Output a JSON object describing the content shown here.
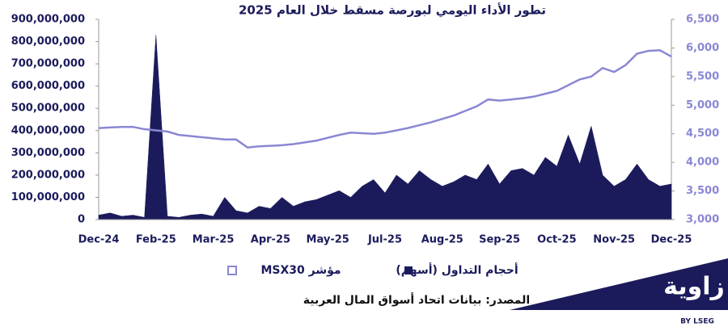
{
  "chart_data": {
    "type": "line",
    "title": "تطور الأداء اليومي لبورصة مسقط خلال العام 2025",
    "categories": [
      "Dec-24",
      null,
      null,
      null,
      null,
      "Feb-25",
      null,
      null,
      null,
      null,
      "Mar-25",
      null,
      null,
      null,
      null,
      "Apr-25",
      null,
      null,
      null,
      null,
      "May-25",
      null,
      null,
      null,
      null,
      "Jul-25",
      null,
      null,
      null,
      null,
      "Aug-25",
      null,
      null,
      null,
      null,
      "Sep-25",
      null,
      null,
      null,
      null,
      "Oct-25",
      null,
      null,
      null,
      null,
      "Nov-25",
      null,
      null,
      null,
      null,
      "Dec-25"
    ],
    "series": [
      {
        "name": "أحجام التداول (أسهم)",
        "color": "#1b1b5c",
        "axis": "y",
        "style": "area",
        "values": [
          20000000,
          30000000,
          15000000,
          20000000,
          10000000,
          830000000,
          15000000,
          10000000,
          20000000,
          25000000,
          15000000,
          100000000,
          40000000,
          30000000,
          60000000,
          50000000,
          100000000,
          60000000,
          80000000,
          90000000,
          110000000,
          130000000,
          100000000,
          150000000,
          180000000,
          120000000,
          200000000,
          160000000,
          220000000,
          180000000,
          150000000,
          170000000,
          200000000,
          180000000,
          250000000,
          160000000,
          220000000,
          230000000,
          200000000,
          280000000,
          240000000,
          380000000,
          250000000,
          420000000,
          200000000,
          150000000,
          180000000,
          250000000,
          180000000,
          150000000,
          160000000
        ]
      },
      {
        "name": "مؤشر MSX30",
        "color": "#8a87d4",
        "axis": "y2",
        "style": "line",
        "values": [
          4600,
          4610,
          4620,
          4620,
          4580,
          4560,
          4540,
          4480,
          4460,
          4440,
          4420,
          4400,
          4400,
          4260,
          4280,
          4290,
          4300,
          4320,
          4350,
          4380,
          4430,
          4480,
          4520,
          4510,
          4500,
          4520,
          4560,
          4600,
          4650,
          4700,
          4760,
          4820,
          4900,
          4980,
          5100,
          5080,
          5100,
          5120,
          5150,
          5200,
          5250,
          5350,
          5450,
          5500,
          5650,
          5580,
          5700,
          5900,
          5950,
          5960,
          5850
        ]
      }
    ],
    "ylim": [
      0,
      900000000
    ],
    "yticks": [
      0,
      {
        "value": 100000000,
        "label": "100,000,000"
      },
      {
        "value": 200000000,
        "label": "200,000,000"
      },
      {
        "value": 300000000,
        "label": "300,000,000"
      },
      {
        "value": 400000000,
        "label": "400,000,000"
      },
      {
        "value": 500000000,
        "label": "500,000,000"
      },
      {
        "value": 600000000,
        "label": "600,000,000"
      },
      {
        "value": 700000000,
        "label": "700,000,000"
      },
      {
        "value": 800000000,
        "label": "800,000,000"
      },
      {
        "value": 900000000,
        "label": "900,000,000"
      }
    ],
    "y2lim": [
      3000,
      6500
    ],
    "y2ticks": [
      {
        "value": 3000,
        "label": "3,000"
      },
      {
        "value": 3500,
        "label": "3,500"
      },
      {
        "value": 4000,
        "label": "4,000"
      },
      {
        "value": 4500,
        "label": "4,500"
      },
      {
        "value": 5000,
        "label": "5,000"
      },
      {
        "value": 5500,
        "label": "5,500"
      },
      {
        "value": 6000,
        "label": "6,000"
      },
      {
        "value": 6500,
        "label": "6,500"
      }
    ],
    "grid": false,
    "source": "المصدر: بيانات اتحاد أسواق المال العربية",
    "logo": {
      "name": "زاوية",
      "tagline": "BY LSEG"
    }
  }
}
